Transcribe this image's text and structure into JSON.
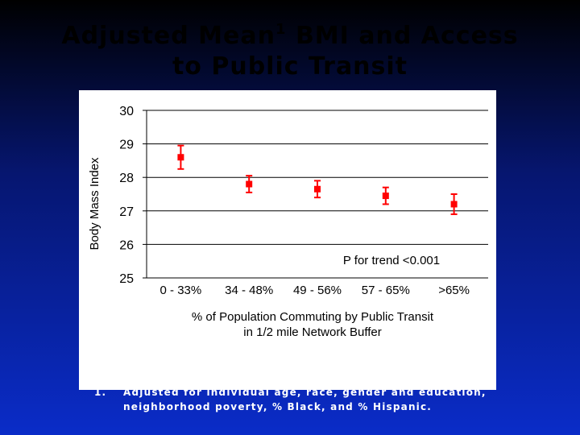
{
  "slide": {
    "title_part1": "Adjusted Mean",
    "title_sup": "1",
    "title_part2": " BMI and Access",
    "title_line2": "to Public Transit",
    "footnote_number": "1.",
    "footnote_text": "Adjusted for individual age, race, gender and education, neighborhood poverty, % Black, and % Hispanic.",
    "background_top": "#000000",
    "background_bottom": "#0a2cc8"
  },
  "chart_data": {
    "type": "scatter",
    "categories": [
      "0 - 33%",
      "34 - 48%",
      "49 - 56%",
      "57 - 65%",
      ">65%"
    ],
    "values": [
      28.6,
      27.8,
      27.65,
      27.45,
      27.2
    ],
    "error_low": [
      28.25,
      27.55,
      27.4,
      27.2,
      26.9
    ],
    "error_high": [
      28.95,
      28.05,
      27.9,
      27.7,
      27.5
    ],
    "ylabel": "Body Mass Index",
    "xlabel_line1": "% of Population Commuting by Public Transit",
    "xlabel_line2": "in 1/2 mile Network Buffer",
    "ylim": [
      25,
      30
    ],
    "yticks": [
      25,
      26,
      27,
      28,
      29,
      30
    ],
    "grid": true,
    "annotation": "P for trend <0.001",
    "marker_color": "#ff0000",
    "grid_color": "#000000"
  }
}
